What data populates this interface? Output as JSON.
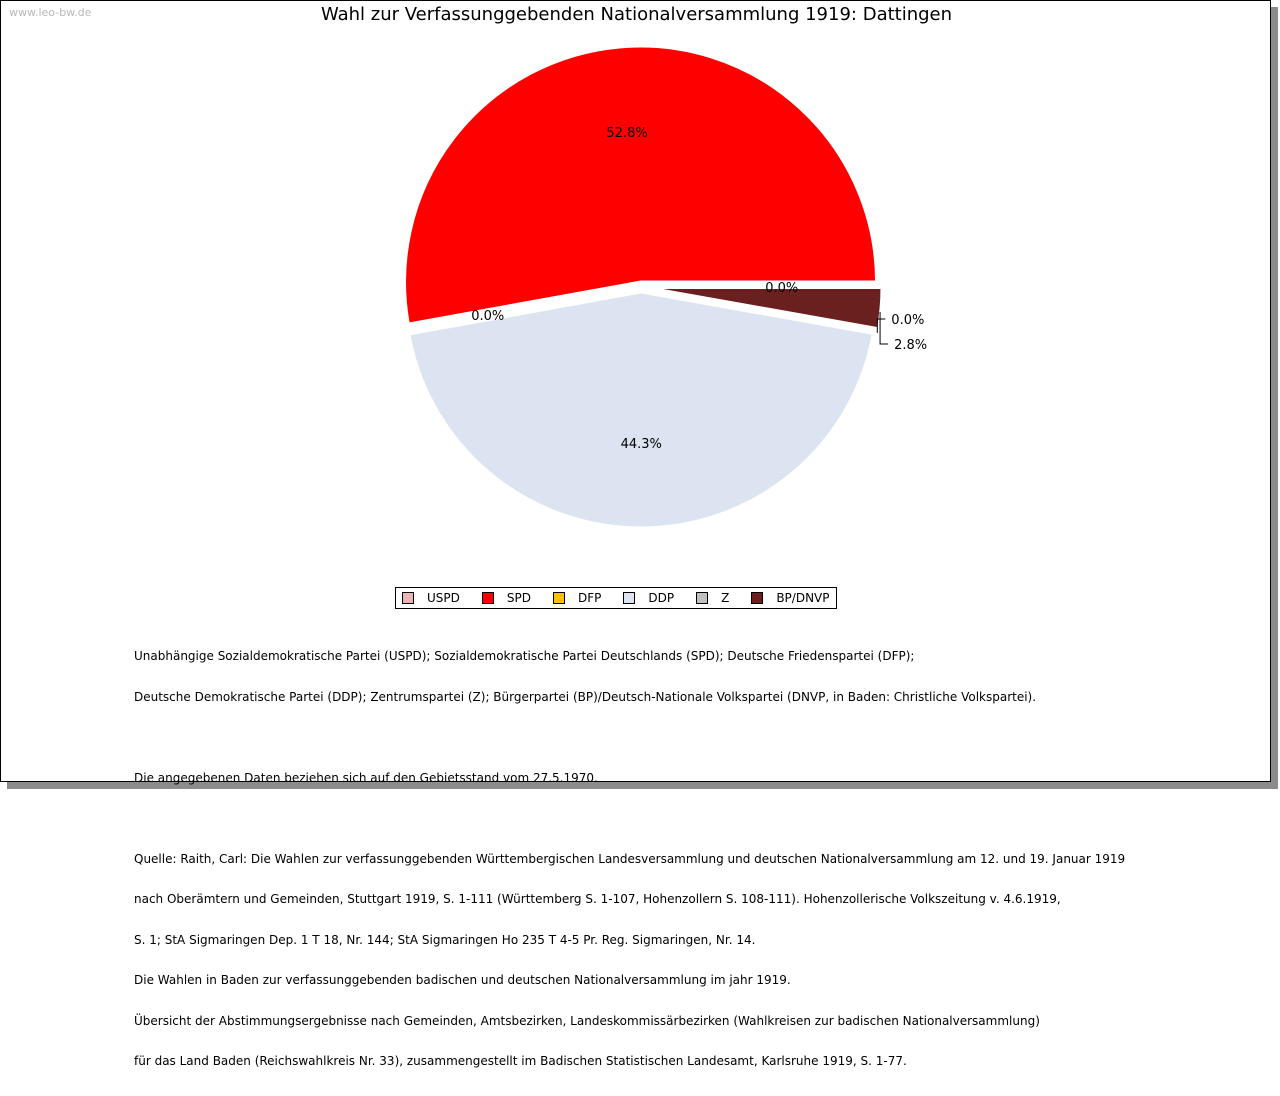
{
  "watermark": "www.leo-bw.de",
  "chart_data": {
    "type": "pie",
    "title": "Wahl zur Verfassunggebenden Nationalversammlung 1919: Dattingen",
    "start_angle": "0 degrees (3 o'clock), counter-clockwise",
    "slices": [
      {
        "name": "USPD",
        "value": 0.0,
        "label": "0.0%",
        "color": "#e8b4b4"
      },
      {
        "name": "SPD",
        "value": 52.8,
        "label": "52.8%",
        "color": "#ff0000"
      },
      {
        "name": "DFP",
        "value": 0.0,
        "label": "0.0%",
        "color": "#ffc000"
      },
      {
        "name": "DDP",
        "value": 44.3,
        "label": "44.3%",
        "color": "#dbe4f0"
      },
      {
        "name": "Z",
        "value": 0.0,
        "label": "0.0%",
        "color": "#c0c0c0"
      },
      {
        "name": "BP/DNVP",
        "value": 2.8,
        "label": "2.8%",
        "color": "#6b2020"
      }
    ],
    "legend_placement": "bottom-center"
  },
  "notes": {
    "parties_line1": "Unabhängige Sozialdemokratische Partei (USPD); Sozialdemokratische Partei Deutschlands (SPD); Deutsche Friedenspartei (DFP);",
    "parties_line2": "Deutsche Demokratische Partei (DDP); Zentrumspartei (Z); Bürgerpartei (BP)/Deutsch-Nationale Volkspartei (DNVP, in Baden: Christliche Volkspartei).",
    "territory": "Die angegebenen Daten beziehen sich auf den Gebietsstand vom 27.5.1970.",
    "source_line1": "Quelle: Raith, Carl: Die Wahlen zur verfassunggebenden Württembergischen Landesversammlung und deutschen Nationalversammlung am 12. und 19. Januar 1919",
    "source_line2": "nach Oberämtern und Gemeinden, Stuttgart 1919, S. 1-111 (Württemberg S. 1-107, Hohenzollern S. 108-111). Hohenzollerische Volkszeitung v. 4.6.1919,",
    "source_line3": "S. 1; StA Sigmaringen Dep. 1 T 18, Nr. 144; StA Sigmaringen Ho 235 T 4-5 Pr. Reg. Sigmaringen, Nr. 14.",
    "source_line4": "Die Wahlen in Baden zur verfassunggebenden badischen und deutschen Nationalversammlung im jahr 1919.",
    "source_line5": "Übersicht der Abstimmungsergebnisse nach Gemeinden, Amtsbezirken, Landeskommissärbezirken (Wahlkreisen zur badischen Nationalversammlung)",
    "source_line6": "für das Land Baden (Reichswahlkreis Nr. 33), zusammengestellt im Badischen Statistischen Landesamt, Karlsruhe 1919, S. 1-77."
  }
}
